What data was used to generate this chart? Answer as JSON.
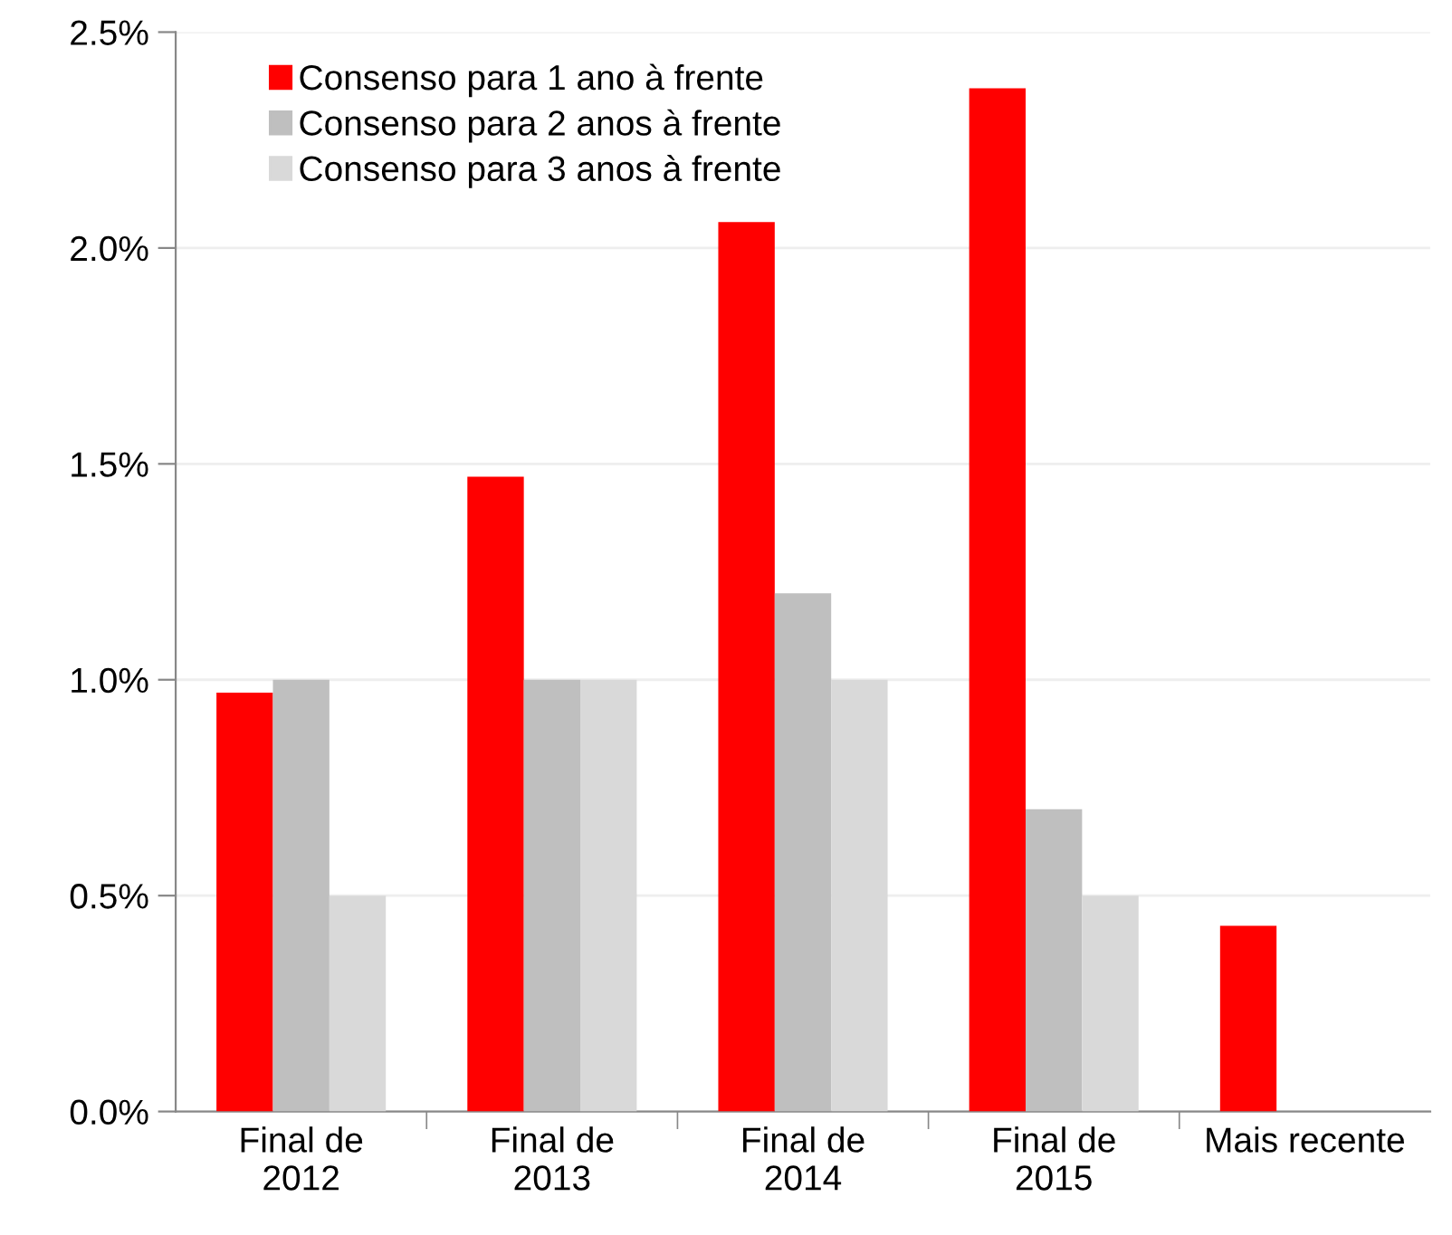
{
  "chart_data": {
    "type": "bar",
    "categories": [
      "Final de\n2012",
      "Final de\n2013",
      "Final de\n2014",
      "Final de\n2015",
      "Mais recente"
    ],
    "series": [
      {
        "name": "Consenso para 1 ano à frente",
        "color": "#ff0000",
        "values": [
          0.97,
          1.47,
          2.06,
          2.37,
          0.43
        ]
      },
      {
        "name": "Consenso para 2 anos à frente",
        "color": "#bfbfbf",
        "values": [
          1.0,
          1.0,
          1.2,
          0.7,
          null
        ]
      },
      {
        "name": "Consenso para 3 anos à frente",
        "color": "#d9d9d9",
        "values": [
          0.5,
          1.0,
          1.0,
          0.5,
          null
        ]
      }
    ],
    "ylim": [
      0,
      2.5
    ],
    "yticks": [
      {
        "value": 0,
        "label": "0.0%"
      },
      {
        "value": 0.5,
        "label": "0.5%"
      },
      {
        "value": 1.0,
        "label": "1.0%"
      },
      {
        "value": 1.5,
        "label": "1.5%"
      },
      {
        "value": 2.0,
        "label": "2.0%"
      },
      {
        "value": 2.5,
        "label": "2.5%"
      }
    ],
    "grid": "y",
    "legend": "top left"
  }
}
